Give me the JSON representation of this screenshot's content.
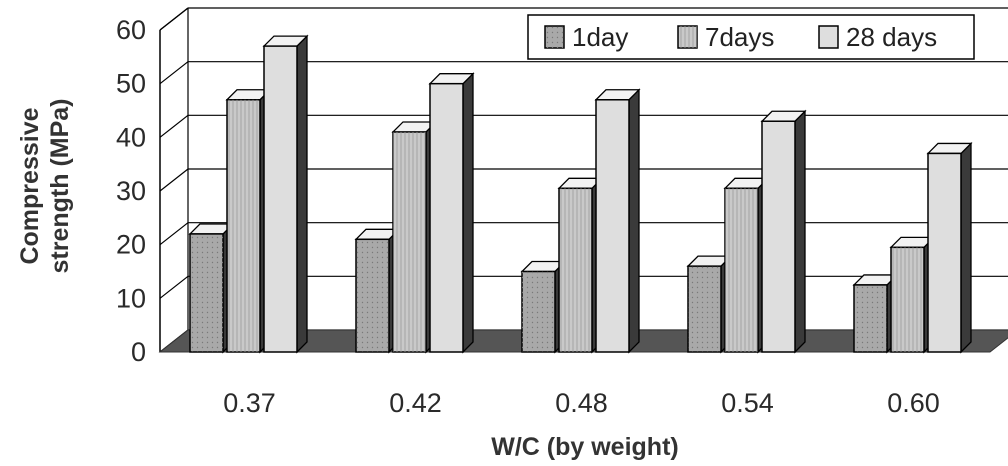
{
  "chart_data": {
    "type": "bar",
    "title": "",
    "xlabel": "W/C (by weight)",
    "ylabel_lines": [
      "Compressive",
      "strength (MPa)"
    ],
    "categories": [
      "0.37",
      "0.42",
      "0.48",
      "0.54",
      "0.60"
    ],
    "series": [
      {
        "name": "1day",
        "values": [
          22,
          21,
          15,
          16,
          12.5
        ],
        "color": "#a9a9a9"
      },
      {
        "name": "7days",
        "values": [
          47,
          41,
          30.5,
          30.5,
          19.5
        ],
        "color": "#c9c9c9"
      },
      {
        "name": "28 days",
        "values": [
          57,
          50,
          47,
          43,
          37
        ],
        "color": "#dedede"
      }
    ],
    "yticks": [
      0,
      10,
      20,
      30,
      40,
      50,
      60
    ],
    "ylim": [
      0,
      60
    ],
    "grid": true,
    "legend_position": "top-right",
    "style": "3d-clustered"
  }
}
